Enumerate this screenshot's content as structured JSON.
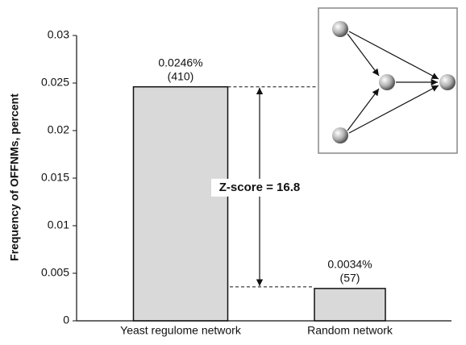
{
  "chart_data": {
    "type": "bar",
    "y_label": "Frequency of OFFNMs, percent",
    "categories": [
      "Yeast regulome network",
      "Random network"
    ],
    "values": [
      0.0246,
      0.0034
    ],
    "value_labels": [
      "0.0246%",
      "0.0034%"
    ],
    "count_labels": [
      "(410)",
      "(57)"
    ],
    "annotation": "Z-score = 16.8",
    "color": "#d9d9d9",
    "ylim": [
      0,
      0.03
    ],
    "yticks": [
      0,
      0.005,
      0.01,
      0.015,
      0.02,
      0.025,
      0.03
    ]
  }
}
